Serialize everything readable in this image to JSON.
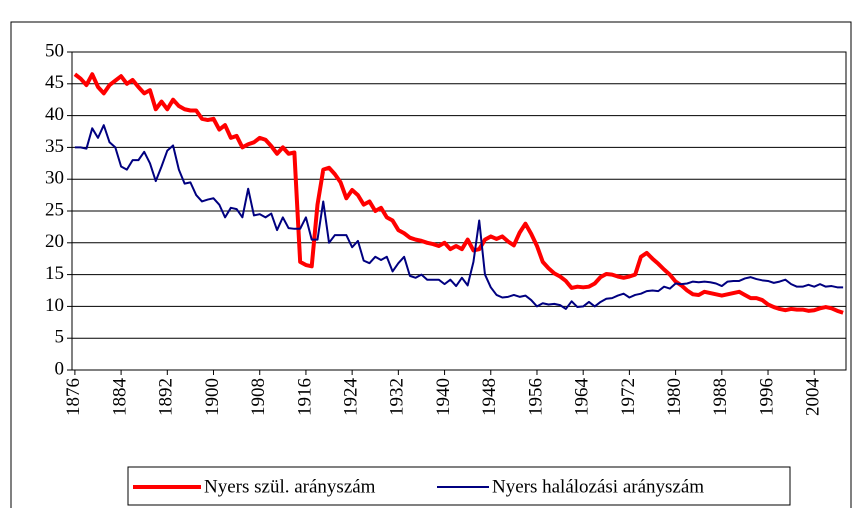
{
  "chart_data": {
    "type": "line",
    "x": [
      1876,
      1877,
      1878,
      1879,
      1880,
      1881,
      1882,
      1883,
      1884,
      1885,
      1886,
      1887,
      1888,
      1889,
      1890,
      1891,
      1892,
      1893,
      1894,
      1895,
      1896,
      1897,
      1898,
      1899,
      1900,
      1901,
      1902,
      1903,
      1904,
      1905,
      1906,
      1907,
      1908,
      1909,
      1910,
      1911,
      1912,
      1913,
      1914,
      1915,
      1916,
      1917,
      1918,
      1919,
      1920,
      1921,
      1922,
      1923,
      1924,
      1925,
      1926,
      1927,
      1928,
      1929,
      1930,
      1931,
      1932,
      1933,
      1934,
      1935,
      1936,
      1937,
      1938,
      1939,
      1940,
      1941,
      1942,
      1943,
      1944,
      1945,
      1946,
      1947,
      1948,
      1949,
      1950,
      1951,
      1952,
      1953,
      1954,
      1955,
      1956,
      1957,
      1958,
      1959,
      1960,
      1961,
      1962,
      1963,
      1964,
      1965,
      1966,
      1967,
      1968,
      1969,
      1970,
      1971,
      1972,
      1973,
      1974,
      1975,
      1976,
      1977,
      1978,
      1979,
      1980,
      1981,
      1982,
      1983,
      1984,
      1985,
      1986,
      1987,
      1988,
      1989,
      1990,
      1991,
      1992,
      1993,
      1994,
      1995,
      1996,
      1997,
      1998,
      1999,
      2000,
      2001,
      2002,
      2003,
      2004,
      2005,
      2006,
      2007,
      2008,
      2009
    ],
    "series": [
      {
        "name": "Nyers szül. arányszám",
        "color": "#ff0000",
        "width": 4,
        "values": [
          46.5,
          45.8,
          44.8,
          46.5,
          44.5,
          43.5,
          44.8,
          45.5,
          46.2,
          45.0,
          45.6,
          44.5,
          43.5,
          44.0,
          41.0,
          42.2,
          41.0,
          42.5,
          41.5,
          41.0,
          40.8,
          40.8,
          39.5,
          39.3,
          39.5,
          37.8,
          38.5,
          36.5,
          36.8,
          35.0,
          35.5,
          35.8,
          36.5,
          36.2,
          35.2,
          34.0,
          35.0,
          34.0,
          34.2,
          17.0,
          16.5,
          16.3,
          26.0,
          31.5,
          31.8,
          30.8,
          29.5,
          27.0,
          28.3,
          27.5,
          26.0,
          26.5,
          25.0,
          25.5,
          24.0,
          23.5,
          22.0,
          21.5,
          20.8,
          20.5,
          20.3,
          20.0,
          19.8,
          19.5,
          20.0,
          19.0,
          19.5,
          19.0,
          20.5,
          18.8,
          19.0,
          20.5,
          21.0,
          20.6,
          21.0,
          20.2,
          19.6,
          21.6,
          23.0,
          21.4,
          19.5,
          17.0,
          16.0,
          15.2,
          14.7,
          14.0,
          12.9,
          13.1,
          13.0,
          13.1,
          13.6,
          14.6,
          15.1,
          15.0,
          14.7,
          14.5,
          14.7,
          15.0,
          17.8,
          18.4,
          17.5,
          16.7,
          15.8,
          15.0,
          13.9,
          13.3,
          12.5,
          11.9,
          11.8,
          12.3,
          12.1,
          11.9,
          11.7,
          11.9,
          12.1,
          12.3,
          11.8,
          11.3,
          11.3,
          11.0,
          10.3,
          9.9,
          9.6,
          9.4,
          9.6,
          9.5,
          9.5,
          9.3,
          9.4,
          9.7,
          9.9,
          9.7,
          9.3,
          9.0
        ]
      },
      {
        "name": "Nyers halálozási arányszám",
        "color": "#000080",
        "width": 2,
        "values": [
          35.0,
          35.0,
          34.8,
          38.0,
          36.5,
          38.5,
          35.8,
          35.0,
          32.0,
          31.5,
          33.0,
          33.0,
          34.3,
          32.5,
          29.7,
          32.0,
          34.5,
          35.3,
          31.5,
          29.3,
          29.5,
          27.5,
          26.5,
          26.8,
          27.0,
          26.0,
          24.0,
          25.5,
          25.3,
          24.0,
          28.5,
          24.3,
          24.5,
          24.0,
          24.6,
          22.0,
          24.0,
          22.3,
          22.2,
          22.2,
          24.0,
          20.5,
          20.5,
          26.5,
          20.0,
          21.2,
          21.2,
          21.2,
          19.3,
          20.3,
          17.2,
          16.8,
          17.8,
          17.3,
          17.8,
          15.5,
          16.8,
          17.8,
          14.8,
          14.5,
          15.0,
          14.2,
          14.2,
          14.2,
          13.5,
          14.2,
          13.2,
          14.5,
          13.3,
          17.0,
          23.5,
          15.0,
          13.0,
          11.8,
          11.4,
          11.5,
          11.8,
          11.5,
          11.7,
          11.0,
          10.0,
          10.5,
          10.3,
          10.4,
          10.2,
          9.6,
          10.8,
          9.9,
          10.0,
          10.7,
          10.0,
          10.7,
          11.2,
          11.3,
          11.7,
          12.0,
          11.4,
          11.8,
          12.0,
          12.4,
          12.5,
          12.4,
          13.1,
          12.8,
          13.6,
          13.5,
          13.6,
          13.9,
          13.8,
          13.9,
          13.8,
          13.6,
          13.2,
          13.9,
          14.0,
          14.0,
          14.4,
          14.6,
          14.3,
          14.1,
          14.0,
          13.7,
          13.9,
          14.2,
          13.5,
          13.1,
          13.1,
          13.4,
          13.1,
          13.5,
          13.1,
          13.2,
          13.0,
          13.0
        ]
      }
    ],
    "xlim": [
      1875.5,
      2009.5
    ],
    "xticks": [
      1876,
      1884,
      1892,
      1900,
      1908,
      1916,
      1924,
      1932,
      1940,
      1948,
      1956,
      1964,
      1972,
      1980,
      1988,
      1996,
      2004
    ],
    "ylim": [
      0,
      50
    ],
    "yticks": [
      0,
      5,
      10,
      15,
      20,
      25,
      30,
      35,
      40,
      45,
      50
    ],
    "grid": true
  }
}
